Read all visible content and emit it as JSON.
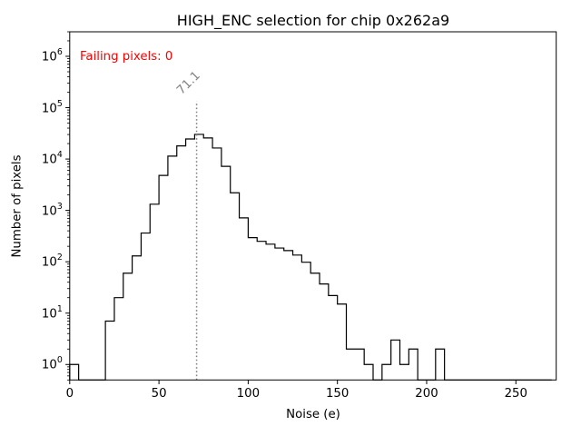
{
  "figure": {
    "background": "#ffffff",
    "spine_color": "#000000"
  },
  "chart_data": {
    "type": "bar",
    "subtype": "step-histogram",
    "title": "HIGH_ENC selection for chip 0x262a9",
    "xlabel": "Noise (e)",
    "ylabel": "Number of pixels",
    "yscale": "log",
    "grid": false,
    "legend": null,
    "xlim": [
      0,
      272.6
    ],
    "ylim": [
      0.5,
      3000000
    ],
    "x_ticks": [
      0,
      50,
      100,
      150,
      200,
      250
    ],
    "y_tick_base": "10",
    "y_tick_exponents": [
      0,
      1,
      2,
      3,
      4,
      5,
      6
    ],
    "bin_start": 0,
    "bin_width": 5,
    "counts": [
      1,
      0,
      0,
      0,
      7,
      20,
      60,
      130,
      362,
      1320,
      4800,
      11400,
      18000,
      24600,
      30200,
      25700,
      16400,
      7200,
      2200,
      715,
      295,
      250,
      220,
      185,
      165,
      135,
      98,
      60,
      37,
      22,
      15,
      2,
      2,
      1,
      0,
      1,
      3,
      1,
      2,
      0,
      0,
      2,
      0,
      0,
      0,
      0,
      0,
      0,
      0,
      0,
      0,
      0,
      0,
      0
    ],
    "line_color": "#000000",
    "vline": {
      "x": 71.1,
      "label": "71.1",
      "color": "#808080",
      "style": "dotted",
      "ymax_frac": 0.8
    },
    "annotations": [
      {
        "text": "Failing pixels: 0",
        "color": "#ff0000"
      }
    ]
  }
}
